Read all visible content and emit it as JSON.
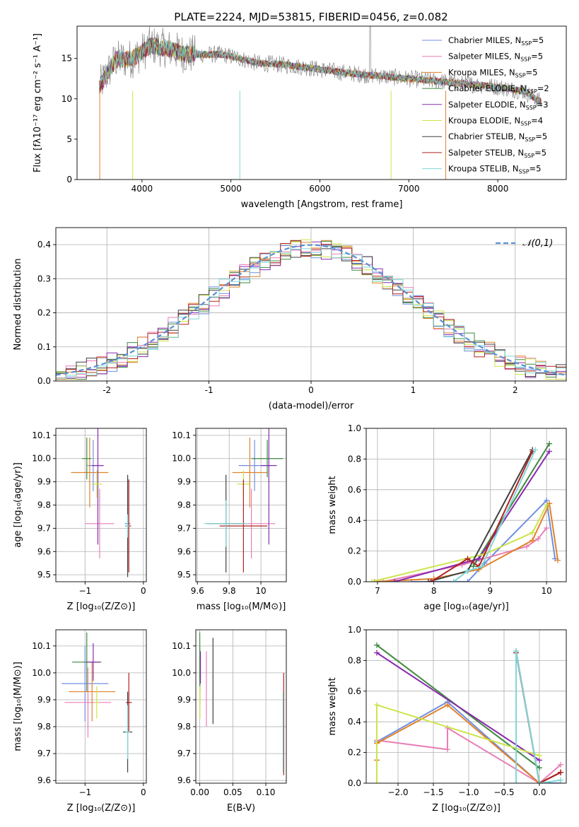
{
  "figure": {
    "title": "PLATE=2224, MJD=53815, FIBERID=0456, z=0.082",
    "series_colors": [
      "#4c72b0",
      "#dd8452",
      "#55a868",
      "#c44e52",
      "#8172b3",
      "#937860",
      "#da8bc3",
      "#8c8c8c",
      "#ccb974",
      "#64b5cd"
    ]
  },
  "chart_data": [
    {
      "id": "spectrum",
      "type": "line",
      "xlabel": "wavelength [Angstrom, rest frame]",
      "ylabel": "Flux [fλ10⁻¹⁷ erg cm⁻² s⁻¹ A⁻¹]",
      "xlim": [
        3270,
        8770
      ],
      "ylim": [
        0,
        19
      ],
      "xticks": [
        4000,
        5000,
        6000,
        7000,
        8000
      ],
      "yticks": [
        0,
        5,
        10,
        15
      ],
      "legend_position": "top-right",
      "series": [
        {
          "name": "Chabrier MILES, N_SSP=5",
          "color": "#6f8fe0"
        },
        {
          "name": "Salpeter MILES, N_SSP=5",
          "color": "#e87fb5"
        },
        {
          "name": "Kroupa MILES, N_SSP=5",
          "color": "#e0822a"
        },
        {
          "name": "Chabrier ELODIE, N_SSP=2",
          "color": "#3f8a3f"
        },
        {
          "name": "Salpeter ELODIE, N_SSP=3",
          "color": "#8a2bb0"
        },
        {
          "name": "Kroupa ELODIE, N_SSP=4",
          "color": "#cde44a"
        },
        {
          "name": "Chabrier STELIB, N_SSP=5",
          "color": "#404040"
        },
        {
          "name": "Salpeter STELIB, N_SSP=5",
          "color": "#b22222"
        },
        {
          "name": "Kroupa STELIB, N_SSP=5",
          "color": "#7fd8d8"
        }
      ],
      "data_envelope": {
        "x": [
          3520,
          3700,
          3900,
          4100,
          4300,
          4500,
          4700,
          4900,
          5100,
          5300,
          5500,
          5700,
          5900,
          6100,
          6300,
          6500,
          6700,
          6900,
          7100,
          7300,
          7500,
          7700,
          7900,
          8100,
          8300,
          8500
        ],
        "y": [
          11.5,
          14.8,
          15.0,
          16.6,
          16.2,
          15.5,
          15.5,
          15.5,
          15.0,
          14.4,
          14.3,
          14.1,
          13.8,
          13.5,
          13.2,
          13.0,
          12.8,
          12.6,
          12.4,
          12.2,
          12.0,
          11.8,
          11.6,
          11.3,
          10.9,
          9.5
        ]
      }
    },
    {
      "id": "residuals",
      "type": "histogram",
      "xlabel": "(data-model)/error",
      "ylabel": "Normed distribution",
      "xlim": [
        -2.5,
        2.5
      ],
      "ylim": [
        0,
        0.45
      ],
      "xticks": [
        -2,
        -1,
        0,
        1,
        2
      ],
      "yticks": [
        0.0,
        0.1,
        0.2,
        0.3,
        0.4
      ],
      "reference": {
        "name": "𝒩(0,1)",
        "color": "#5b8fd6",
        "mean": 0,
        "sigma": 1
      },
      "bin_width": 0.1,
      "approx_amplitude": 0.39
    },
    {
      "id": "age-vs-Z",
      "type": "errorbar",
      "xlabel": "Z [log₁₀(Z/Z⊙)]",
      "ylabel": "age  [log₁₀(age/yr)]",
      "xlim": [
        -1.5,
        0.05
      ],
      "ylim": [
        9.47,
        10.13
      ],
      "xticks": [
        -1,
        0
      ],
      "xticklabels": [
        "−1",
        "0"
      ],
      "yticks": [
        9.5,
        9.6,
        9.7,
        9.8,
        9.9,
        10.0,
        10.1
      ],
      "points": [
        {
          "series": 0,
          "x": -0.86,
          "y": 9.97,
          "xerr": 0.1,
          "yerr": 0.11
        },
        {
          "series": 0,
          "x": -0.27,
          "y": 9.72,
          "xerr": 0.05,
          "yerr": 0.2
        },
        {
          "series": 1,
          "x": -0.75,
          "y": 9.72,
          "xerr": 0.25,
          "yerr": 0.15
        },
        {
          "series": 2,
          "x": -0.92,
          "y": 9.94,
          "xerr": 0.32,
          "yerr": 0.15
        },
        {
          "series": 3,
          "x": -0.97,
          "y": 10.0,
          "xerr": 0.08,
          "yerr": 0.09
        },
        {
          "series": 4,
          "x": -0.78,
          "y": 9.97,
          "xerr": 0.1,
          "yerr": 0.34
        },
        {
          "series": 5,
          "x": -0.8,
          "y": 9.89,
          "xerr": 0.09,
          "yerr": 0.06
        },
        {
          "series": 6,
          "x": -0.27,
          "y": 9.71,
          "xerr": 0.04,
          "yerr": 0.22
        },
        {
          "series": 7,
          "x": -0.25,
          "y": 9.71,
          "xerr": 0.04,
          "yerr": 0.2
        },
        {
          "series": 8,
          "x": -0.27,
          "y": 9.71,
          "xerr": 0.03,
          "yerr": 0.05
        }
      ]
    },
    {
      "id": "age-vs-mass",
      "type": "errorbar",
      "xlabel": "mass [log₁₀(M/M⊙)]",
      "ylabel": "",
      "xlim": [
        9.59,
        10.16
      ],
      "ylim": [
        9.47,
        10.13
      ],
      "xticks": [
        9.6,
        9.8,
        10.0
      ],
      "yticks": [
        9.5,
        9.6,
        9.7,
        9.8,
        9.9,
        10.0,
        10.1
      ],
      "points": [
        {
          "series": 0,
          "x": 9.96,
          "y": 9.97,
          "xerr": 0.1,
          "yerr": 0.11
        },
        {
          "series": 1,
          "x": 9.94,
          "y": 9.72,
          "xerr": 0.15,
          "yerr": 0.15
        },
        {
          "series": 2,
          "x": 9.93,
          "y": 9.94,
          "xerr": 0.11,
          "yerr": 0.15
        },
        {
          "series": 3,
          "x": 10.04,
          "y": 10.0,
          "xerr": 0.1,
          "yerr": 0.08
        },
        {
          "series": 4,
          "x": 10.05,
          "y": 9.97,
          "xerr": 0.05,
          "yerr": 0.34
        },
        {
          "series": 5,
          "x": 9.89,
          "y": 9.89,
          "xerr": 0.04,
          "yerr": 0.06
        },
        {
          "series": 6,
          "x": 9.78,
          "y": 9.72,
          "xerr": 0.12,
          "yerr": 0.21
        },
        {
          "series": 7,
          "x": 9.89,
          "y": 9.71,
          "xerr": 0.15,
          "yerr": 0.2
        },
        {
          "series": 8,
          "x": 9.78,
          "y": 9.72,
          "xerr": 0.14,
          "yerr": 0.1
        }
      ]
    },
    {
      "id": "massweight-vs-age",
      "type": "line",
      "xlabel": "age  [log₁₀(age/yr)]",
      "ylabel": "mass weight",
      "xlim": [
        6.8,
        10.35
      ],
      "ylim": [
        0,
        1.0
      ],
      "xticks": [
        7,
        8,
        9,
        10
      ],
      "yticks": [
        0.0,
        0.2,
        0.4,
        0.6,
        0.8,
        1.0
      ],
      "series": [
        {
          "series": 0,
          "x": [
            7.6,
            8.6,
            8.9,
            10.0,
            10.15
          ],
          "y": [
            0.0,
            0.0,
            0.12,
            0.53,
            0.15
          ]
        },
        {
          "series": 1,
          "x": [
            7.1,
            8.5,
            9.65,
            9.85,
            10.0
          ],
          "y": [
            0.0,
            0.11,
            0.23,
            0.28,
            0.35
          ]
        },
        {
          "series": 2,
          "x": [
            6.95,
            8.0,
            8.8,
            9.75,
            10.05,
            10.2
          ],
          "y": [
            0.0,
            0.02,
            0.08,
            0.27,
            0.51,
            0.14
          ]
        },
        {
          "series": 3,
          "x": [
            8.7,
            10.05
          ],
          "y": [
            0.1,
            0.9
          ]
        },
        {
          "series": 4,
          "x": [
            7.3,
            8.8,
            10.05
          ],
          "y": [
            0.0,
            0.15,
            0.85
          ]
        },
        {
          "series": 5,
          "x": [
            6.9,
            8.9,
            9.75,
            10.0
          ],
          "y": [
            0.0,
            0.18,
            0.32,
            0.5
          ]
        },
        {
          "series": 6,
          "x": [
            7.9,
            8.6,
            9.75
          ],
          "y": [
            0.0,
            0.07,
            0.86
          ]
        },
        {
          "series": 7,
          "x": [
            7.95,
            8.6,
            8.8,
            9.75
          ],
          "y": [
            0.0,
            0.15,
            0.1,
            0.85
          ]
        },
        {
          "series": 8,
          "x": [
            8.35,
            8.6,
            8.85,
            9.8
          ],
          "y": [
            0.0,
            0.07,
            0.1,
            0.86
          ]
        }
      ]
    },
    {
      "id": "mass-vs-Z",
      "type": "errorbar",
      "xlabel": "Z [log₁₀(Z/Z⊙)]",
      "ylabel": "mass [log₁₀(M/M⊙)]",
      "xlim": [
        -1.5,
        0.05
      ],
      "ylim": [
        9.59,
        10.16
      ],
      "xticks": [
        -1,
        0
      ],
      "xticklabels": [
        "−1",
        "0"
      ],
      "yticks": [
        9.6,
        9.7,
        9.8,
        9.9,
        10.0,
        10.1
      ],
      "points": [
        {
          "series": 0,
          "x": -1.0,
          "y": 9.96,
          "xerr": 0.4,
          "yerr": 0.14
        },
        {
          "series": 1,
          "x": -0.95,
          "y": 9.89,
          "xerr": 0.4,
          "yerr": 0.13
        },
        {
          "series": 2,
          "x": -0.88,
          "y": 9.93,
          "xerr": 0.4,
          "yerr": 0.11
        },
        {
          "series": 3,
          "x": -0.97,
          "y": 10.04,
          "xerr": 0.25,
          "yerr": 0.11
        },
        {
          "series": 4,
          "x": -0.86,
          "y": 10.04,
          "xerr": 0.12,
          "yerr": 0.07
        },
        {
          "series": 5,
          "x": -0.8,
          "y": 9.89,
          "xerr": 0.04,
          "yerr": 0.06
        },
        {
          "series": 6,
          "x": -0.27,
          "y": 9.78,
          "xerr": 0.08,
          "yerr": 0.15
        },
        {
          "series": 7,
          "x": -0.25,
          "y": 9.89,
          "xerr": 0.05,
          "yerr": 0.11
        },
        {
          "series": 8,
          "x": -0.27,
          "y": 9.78,
          "xerr": 0.04,
          "yerr": 0.1
        }
      ]
    },
    {
      "id": "mass-vs-EBV",
      "type": "errorbar",
      "xlabel": "E(B-V)",
      "ylabel": "",
      "xlim": [
        -0.006,
        0.131
      ],
      "ylim": [
        9.59,
        10.16
      ],
      "xticks": [
        0.0,
        0.05,
        0.1
      ],
      "xticklabels": [
        "0.00",
        "0.05",
        "0.10"
      ],
      "yticks": [
        9.6,
        9.7,
        9.8,
        9.9,
        10.0,
        10.1
      ],
      "points": [
        {
          "series": 0,
          "x": 0.0,
          "y": 9.96,
          "xerr": 0,
          "yerr": 0.13
        },
        {
          "series": 1,
          "x": 0.01,
          "y": 9.94,
          "xerr": 0,
          "yerr": 0.14
        },
        {
          "series": 2,
          "x": 0.0,
          "y": 9.99,
          "xerr": 0,
          "yerr": 0.11
        },
        {
          "series": 3,
          "x": 0.0,
          "y": 10.04,
          "xerr": 0,
          "yerr": 0.11
        },
        {
          "series": 4,
          "x": 0.001,
          "y": 10.02,
          "xerr": 0,
          "yerr": 0.06
        },
        {
          "series": 5,
          "x": 0.0,
          "y": 9.89,
          "xerr": 0,
          "yerr": 0.06
        },
        {
          "series": 6,
          "x": 0.02,
          "y": 9.97,
          "xerr": 0,
          "yerr": 0.16
        },
        {
          "series": 7,
          "x": 0.127,
          "y": 9.81,
          "xerr": 0,
          "yerr": 0.19
        },
        {
          "series": 8,
          "x": 0.126,
          "y": 9.78,
          "xerr": 0,
          "yerr": 0.15
        }
      ]
    },
    {
      "id": "massweight-vs-Z",
      "type": "line",
      "xlabel": "Z [log₁₀(Z/Z⊙)]",
      "ylabel": "mass weight",
      "xlim": [
        -2.45,
        0.38
      ],
      "ylim": [
        0,
        1.0
      ],
      "xticks": [
        -2.0,
        -1.5,
        -1.0,
        -0.5,
        0.0
      ],
      "xticklabels": [
        "−2.0",
        "−1.5",
        "−1.0",
        "−0.5",
        "0.0"
      ],
      "yticks": [
        0.0,
        0.2,
        0.4,
        0.6,
        0.8,
        1.0
      ],
      "series": [
        {
          "series": 0,
          "x": [
            -2.3,
            -2.3,
            -1.3,
            0.0,
            0.3
          ],
          "y": [
            0.15,
            0.27,
            0.53,
            0.0,
            0.0
          ]
        },
        {
          "series": 1,
          "x": [
            -2.3,
            -1.3,
            -1.3,
            0.0,
            0.3
          ],
          "y": [
            0.28,
            0.22,
            0.36,
            0.0,
            0.12
          ]
        },
        {
          "series": 2,
          "x": [
            -2.3,
            -2.3,
            -1.3,
            0.0,
            0.3
          ],
          "y": [
            0.15,
            0.26,
            0.51,
            0.0,
            0.07
          ]
        },
        {
          "series": 3,
          "x": [
            -2.3,
            0.0
          ],
          "y": [
            0.9,
            0.1
          ]
        },
        {
          "series": 4,
          "x": [
            -2.3,
            0.0
          ],
          "y": [
            0.85,
            0.15
          ]
        },
        {
          "series": 5,
          "x": [
            -2.3,
            -2.3,
            0.0
          ],
          "y": [
            0.0,
            0.51,
            0.18
          ]
        },
        {
          "series": 6,
          "x": [
            -0.33,
            0.0,
            0.3
          ],
          "y": [
            0.86,
            0.0,
            0.07
          ]
        },
        {
          "series": 7,
          "x": [
            -0.33,
            0.0,
            0.3
          ],
          "y": [
            0.85,
            0.0,
            0.07
          ]
        },
        {
          "series": 8,
          "x": [
            -0.33,
            -0.33,
            0.0,
            0.3
          ],
          "y": [
            0.0,
            0.86,
            0.0,
            0.02
          ]
        }
      ]
    }
  ]
}
